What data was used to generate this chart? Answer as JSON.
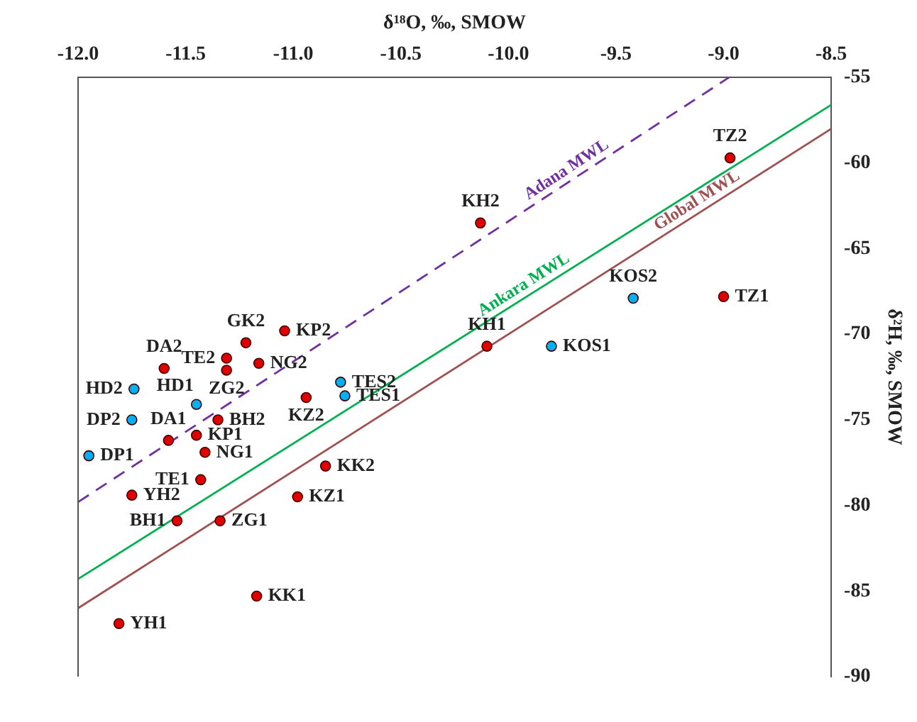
{
  "chart_data": {
    "type": "scatter",
    "xlabel": "δ¹⁸O, ‰, SMOW",
    "ylabel": "δ²H, ‰, SMOW",
    "xlim": [
      -12,
      -8.5
    ],
    "xticks": [
      {
        "value": -12,
        "label": "-12.0"
      },
      {
        "value": -11.5,
        "label": "-11.5"
      },
      {
        "value": -11,
        "label": "-11.0"
      },
      {
        "value": -10.5,
        "label": "-10.5"
      },
      {
        "value": -10,
        "label": "-10.0"
      },
      {
        "value": -9.5,
        "label": "-9.5"
      },
      {
        "value": -9,
        "label": "-9.0"
      },
      {
        "value": -8.5,
        "label": "-8.5"
      }
    ],
    "ylim": [
      -90,
      -55
    ],
    "yticks": [
      -90,
      -85,
      -80,
      -75,
      -70,
      -65,
      -60,
      -55
    ],
    "grid": false,
    "legend": false,
    "marker": "circle",
    "series": [
      {
        "color": "#e00000",
        "x": [
          -8.97,
          -9.0,
          -10.13,
          -10.1,
          -11.22,
          -11.04,
          -11.31,
          -11.31,
          -11.16,
          -11.6,
          -10.94,
          -11.35,
          -11.58,
          -11.45,
          -11.41,
          -11.43,
          -10.85,
          -11.75,
          -10.98,
          -11.54,
          -11.34,
          -11.17,
          -11.81
        ],
        "values": [
          -59.7,
          -67.8,
          -63.5,
          -70.7,
          -70.5,
          -69.8,
          -71.4,
          -72.1,
          -71.7,
          -72.0,
          -73.7,
          -75.0,
          -76.2,
          -75.9,
          -76.9,
          -78.5,
          -77.7,
          -79.4,
          -79.5,
          -80.9,
          -80.9,
          -85.3,
          -86.9
        ]
      },
      {
        "color": "#00b0f0",
        "x": [
          -9.42,
          -9.8,
          -11.74,
          -11.45,
          -10.78,
          -10.76,
          -11.75,
          -11.95
        ],
        "values": [
          -67.9,
          -70.7,
          -73.2,
          -74.1,
          -72.8,
          -73.6,
          -75.0,
          -77.1
        ]
      },
      {
        "type": "line",
        "name": "Adana MWL",
        "color": "#7030a0",
        "line_style": "dashed",
        "marker": "none",
        "x": [
          -12,
          -8.975
        ],
        "values": [
          -79.8,
          -55
        ]
      },
      {
        "type": "line",
        "name": "Ankara MWL",
        "color": "#00b050",
        "line_style": "solid",
        "marker": "none",
        "x": [
          -12,
          -8.5
        ],
        "values": [
          -84.3,
          -56.6
        ]
      },
      {
        "type": "line",
        "name": "Global MWL",
        "color": "#a05050",
        "line_style": "solid",
        "marker": "none",
        "x": [
          -12,
          -8.5
        ],
        "values": [
          -86,
          -58
        ]
      }
    ],
    "annotations": [
      {
        "text": "TZ2",
        "x": -8.97,
        "y": -59.7
      },
      {
        "text": "TZ1",
        "x": -9.0,
        "y": -67.8
      },
      {
        "text": "KH2",
        "x": -10.13,
        "y": -63.5
      },
      {
        "text": "KH1",
        "x": -10.1,
        "y": -70.7
      },
      {
        "text": "GK2",
        "x": -11.22,
        "y": -70.5
      },
      {
        "text": "KP2",
        "x": -11.04,
        "y": -69.8
      },
      {
        "text": "TE2",
        "x": -11.31,
        "y": -71.4
      },
      {
        "text": "ZG2",
        "x": -11.31,
        "y": -72.1
      },
      {
        "text": "NG2",
        "x": -11.16,
        "y": -71.7
      },
      {
        "text": "DA2",
        "x": -11.6,
        "y": -72.0
      },
      {
        "text": "KZ2",
        "x": -10.94,
        "y": -73.7
      },
      {
        "text": "BH2",
        "x": -11.35,
        "y": -75.0
      },
      {
        "text": "DA1",
        "x": -11.58,
        "y": -76.2
      },
      {
        "text": "KP1",
        "x": -11.45,
        "y": -75.9
      },
      {
        "text": "NG1",
        "x": -11.41,
        "y": -76.9
      },
      {
        "text": "TE1",
        "x": -11.43,
        "y": -78.5
      },
      {
        "text": "KK2",
        "x": -10.85,
        "y": -77.7
      },
      {
        "text": "YH2",
        "x": -11.75,
        "y": -79.4
      },
      {
        "text": "KZ1",
        "x": -10.98,
        "y": -79.5
      },
      {
        "text": "BH1",
        "x": -11.54,
        "y": -80.9
      },
      {
        "text": "ZG1",
        "x": -11.34,
        "y": -80.9
      },
      {
        "text": "KK1",
        "x": -11.17,
        "y": -85.3
      },
      {
        "text": "YH1",
        "x": -11.81,
        "y": -86.9
      },
      {
        "text": "KOS2",
        "x": -9.42,
        "y": -67.9
      },
      {
        "text": "KOS1",
        "x": -9.8,
        "y": -70.7
      },
      {
        "text": "HD2",
        "x": -11.74,
        "y": -73.2
      },
      {
        "text": "HD1",
        "x": -11.45,
        "y": -74.1
      },
      {
        "text": "TES2",
        "x": -10.78,
        "y": -72.8
      },
      {
        "text": "TES1",
        "x": -10.76,
        "y": -73.6
      },
      {
        "text": "DP2",
        "x": -11.75,
        "y": -75.0
      },
      {
        "text": "DP1",
        "x": -11.95,
        "y": -77.1
      }
    ]
  }
}
